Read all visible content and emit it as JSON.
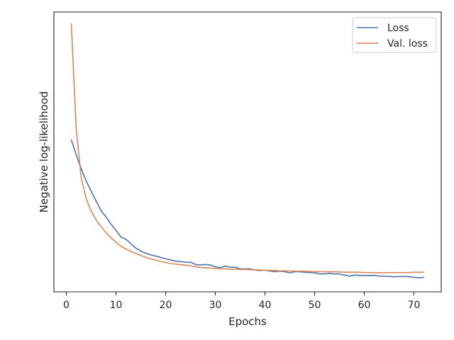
{
  "chart_data": {
    "type": "line",
    "title": "",
    "xlabel": "Epochs",
    "ylabel": "Negative log-likelihood",
    "xlim": [
      -2.5,
      75.5
    ],
    "ylim": [
      0,
      100
    ],
    "y_tick_labels_shown": false,
    "x_ticks": [
      0,
      10,
      20,
      30,
      40,
      50,
      60,
      70
    ],
    "x_tick_labels": [
      "0",
      "10",
      "20",
      "30",
      "40",
      "50",
      "60",
      "70"
    ],
    "legend": {
      "position": "upper right"
    },
    "grid": false,
    "series": [
      {
        "name": "Loss",
        "color": "#4c72b0",
        "x": [
          1,
          2,
          3,
          4,
          5,
          6,
          7,
          8,
          9,
          10,
          11,
          12,
          13,
          14,
          15,
          16,
          17,
          18,
          19,
          20,
          21,
          22,
          23,
          24,
          25,
          26,
          27,
          28,
          29,
          30,
          31,
          32,
          33,
          34,
          35,
          36,
          37,
          38,
          39,
          40,
          41,
          42,
          43,
          44,
          45,
          46,
          47,
          48,
          49,
          50,
          51,
          52,
          53,
          54,
          55,
          56,
          57,
          58,
          59,
          60,
          61,
          62,
          63,
          64,
          65,
          66,
          67,
          68,
          69,
          70,
          71,
          72
        ],
        "y": [
          54.4,
          48.9,
          44.0,
          39.6,
          36.0,
          32.4,
          29.0,
          26.8,
          24.2,
          22.0,
          19.6,
          18.8,
          17.2,
          15.6,
          14.6,
          13.8,
          13.2,
          12.8,
          12.3,
          11.8,
          11.4,
          11.0,
          10.8,
          10.6,
          10.6,
          9.8,
          9.6,
          9.8,
          9.6,
          9.0,
          8.6,
          9.2,
          8.8,
          8.8,
          8.2,
          8.2,
          8.2,
          7.8,
          7.6,
          7.8,
          7.4,
          7.2,
          7.4,
          7.2,
          6.8,
          7.2,
          7.2,
          7.0,
          6.9,
          6.8,
          6.4,
          6.4,
          6.6,
          6.4,
          6.4,
          6.0,
          5.6,
          6.0,
          5.9,
          5.8,
          5.8,
          5.9,
          5.6,
          5.6,
          5.5,
          5.4,
          5.5,
          5.5,
          5.4,
          5.2,
          5.0,
          5.2
        ]
      },
      {
        "name": "Val. loss",
        "color": "#dd8452",
        "x": [
          1,
          2,
          3,
          4,
          5,
          6,
          7,
          8,
          9,
          10,
          11,
          12,
          13,
          14,
          15,
          16,
          17,
          18,
          19,
          20,
          21,
          22,
          23,
          24,
          25,
          26,
          27,
          28,
          29,
          30,
          31,
          32,
          33,
          34,
          35,
          36,
          37,
          38,
          39,
          40,
          41,
          42,
          43,
          44,
          45,
          46,
          47,
          48,
          49,
          50,
          51,
          52,
          53,
          54,
          55,
          56,
          57,
          58,
          59,
          60,
          61,
          62,
          63,
          64,
          65,
          66,
          67,
          68,
          69,
          70,
          71,
          72
        ],
        "y": [
          96.0,
          58.0,
          40.7,
          33.3,
          28.9,
          25.7,
          23.3,
          21.1,
          19.3,
          17.7,
          16.3,
          15.3,
          14.5,
          13.7,
          13.0,
          12.3,
          11.8,
          11.3,
          10.9,
          10.5,
          10.1,
          9.9,
          9.7,
          9.5,
          9.3,
          9.0,
          8.7,
          8.6,
          8.5,
          8.4,
          8.2,
          8.2,
          8.1,
          8.1,
          8.0,
          8.0,
          7.9,
          7.9,
          7.8,
          7.7,
          7.6,
          7.6,
          7.5,
          7.5,
          7.5,
          7.4,
          7.4,
          7.4,
          7.3,
          7.2,
          7.2,
          7.2,
          7.2,
          7.2,
          7.1,
          7.0,
          7.0,
          7.0,
          7.0,
          6.9,
          6.9,
          6.9,
          6.8,
          6.8,
          6.9,
          6.9,
          6.9,
          6.9,
          6.9,
          7.0,
          7.0,
          7.0
        ]
      }
    ]
  }
}
